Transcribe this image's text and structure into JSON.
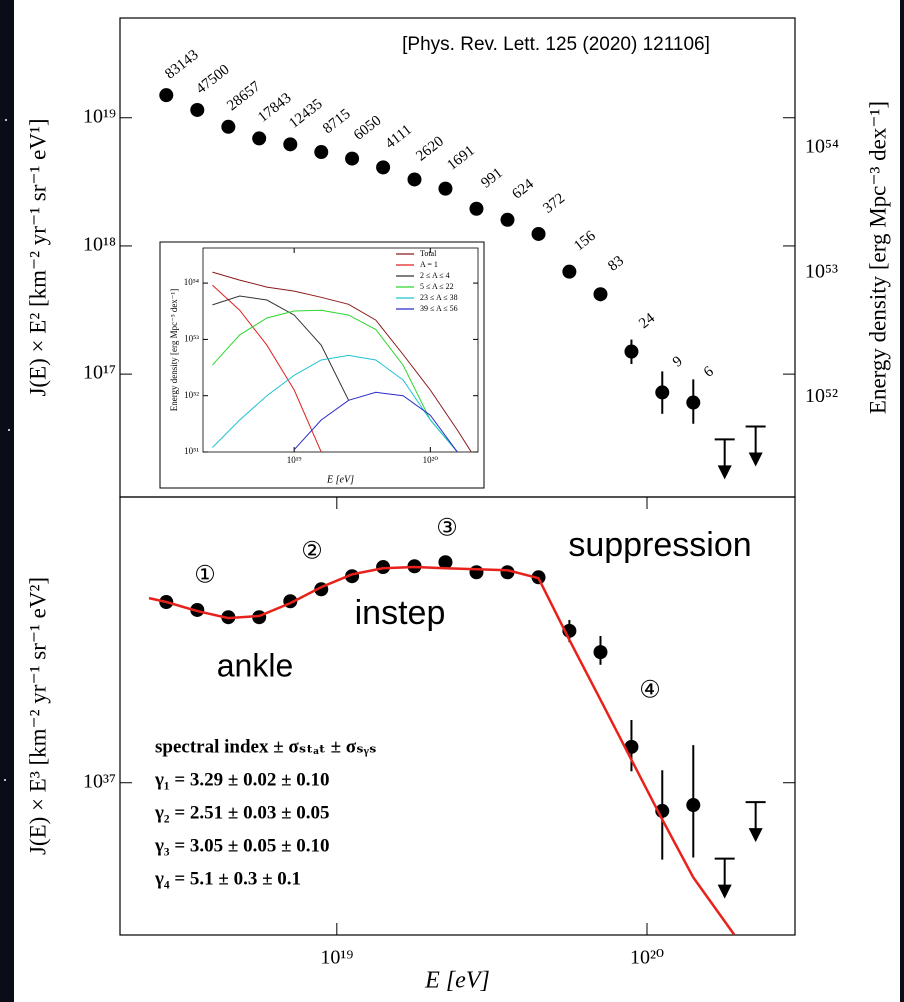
{
  "citation": "[Phys. Rev. Lett. 125 (2020) 121106]",
  "chart_data": [
    {
      "type": "scatter",
      "ylabel": "J(E) × E² [km⁻² yr⁻¹ sr⁻¹ eV¹]",
      "y2label": "Energy density [erg Mpc⁻³ dex⁻¹]",
      "xlog": true,
      "ylog": true,
      "xlim": [
        2e+18,
        3e+20
      ],
      "ylim": [
        1.1e+16,
        6e+19
      ],
      "yticks": [
        {
          "value": 1e+17,
          "label": "10¹⁷"
        },
        {
          "value": 1e+18,
          "label": "10¹⁸"
        },
        {
          "value": 1e+19,
          "label": "10¹⁹"
        }
      ],
      "y2lim": [
        1.6e+51,
        1.1e+55
      ],
      "y2ticks": [
        {
          "value": 1e+52,
          "label": "10⁵²"
        },
        {
          "value": 1e+53,
          "label": "10⁵³"
        },
        {
          "value": 1e+54,
          "label": "10⁵⁴"
        }
      ],
      "x": [
        2.82e+18,
        3.55e+18,
        4.47e+18,
        5.62e+18,
        7.08e+18,
        8.91e+18,
        1.12e+19,
        1.41e+19,
        1.78e+19,
        2.24e+19,
        2.82e+19,
        3.55e+19,
        4.47e+19,
        5.62e+19,
        7.08e+19,
        8.91e+19,
        1.12e+20,
        1.41e+20,
        1.78e+20,
        2.24e+20
      ],
      "series": [
        {
          "color": "#000000",
          "marker": "dot",
          "values": [
            1.5e+19,
            1.15e+19,
            8.5e+18,
            6.9e+18,
            6.2e+18,
            5.4e+18,
            4.8e+18,
            4.1e+18,
            3.3e+18,
            2.8e+18,
            1.95e+18,
            1.6e+18,
            1.24e+18,
            6.3e+17,
            4.2e+17,
            1.5e+17,
            7.2e+16,
            6e+16,
            null,
            null
          ],
          "lower": [
            null,
            null,
            null,
            null,
            null,
            null,
            null,
            null,
            null,
            null,
            null,
            null,
            null,
            null,
            3.7e+17,
            1.2e+17,
            4.9e+16,
            4.1e+16,
            null,
            null
          ],
          "upper": [
            null,
            null,
            null,
            null,
            null,
            null,
            null,
            null,
            null,
            null,
            null,
            null,
            null,
            null,
            4.6e+17,
            1.86e+17,
            1.05e+17,
            9.1e+16,
            null,
            null
          ],
          "event_counts": [
            83143,
            47500,
            28657,
            17843,
            12435,
            8715,
            6050,
            4111,
            2620,
            1691,
            991,
            624,
            372,
            156,
            83,
            24,
            9,
            6,
            null,
            null
          ]
        },
        {
          "color": "#000000",
          "marker": "upper-limit",
          "values": [
            null,
            null,
            null,
            null,
            null,
            null,
            null,
            null,
            null,
            null,
            null,
            null,
            null,
            null,
            null,
            null,
            null,
            null,
            3.1e+16,
            3.9e+16
          ]
        }
      ]
    },
    {
      "type": "scatter",
      "ylabel": "J(E) × E³ [km⁻² yr⁻¹ sr⁻¹ eV²]",
      "xlabel": "E [eV]",
      "xlog": true,
      "ylog": true,
      "xlim": [
        2e+18,
        3e+20
      ],
      "ylim": [
        2.8e+36,
        1.09e+38
      ],
      "xticks": [
        {
          "value": 1e+19,
          "label": "10¹⁹"
        },
        {
          "value": 1e+20,
          "label": "10²⁰"
        }
      ],
      "yticks": [
        {
          "value": 1e+37,
          "label": "10³⁷"
        }
      ],
      "x": [
        2.82e+18,
        3.55e+18,
        4.47e+18,
        5.62e+18,
        7.08e+18,
        8.91e+18,
        1.12e+19,
        1.41e+19,
        1.78e+19,
        2.24e+19,
        2.82e+19,
        3.55e+19,
        4.47e+19,
        5.62e+19,
        7.08e+19,
        8.91e+19,
        1.12e+20,
        1.41e+20,
        1.78e+20,
        2.24e+20
      ],
      "series": [
        {
          "color": "#000000",
          "marker": "dot",
          "values": [
            4.53e+37,
            4.24e+37,
            3.99e+37,
            3.99e+37,
            4.56e+37,
            5.04e+37,
            5.62e+37,
            6.07e+37,
            6.11e+37,
            6.32e+37,
            5.81e+37,
            5.81e+37,
            5.57e+37,
            3.56e+37,
            2.98e+37,
            1.35e+37,
            7.9e+36,
            8.3e+36,
            null,
            null
          ],
          "lower": [
            null,
            null,
            null,
            null,
            null,
            null,
            null,
            null,
            null,
            null,
            null,
            null,
            null,
            3.24e+37,
            2.68e+37,
            1.1e+37,
            5.26e+36,
            5.35e+36,
            null,
            null
          ],
          "upper": [
            null,
            null,
            null,
            null,
            null,
            null,
            null,
            null,
            null,
            null,
            null,
            null,
            null,
            3.9e+37,
            3.41e+37,
            1.69e+37,
            1.11e+37,
            1.37e+37,
            null,
            null
          ]
        },
        {
          "color": "#000000",
          "marker": "upper-limit",
          "values": [
            null,
            null,
            null,
            null,
            null,
            null,
            null,
            null,
            null,
            null,
            null,
            null,
            null,
            null,
            null,
            null,
            null,
            null,
            5.3e+36,
            8.5e+36
          ]
        },
        {
          "color": "#e8211b",
          "marker": "line",
          "x": [
            2.48e+18,
            2.82e+18,
            3.55e+18,
            4.47e+18,
            5.62e+18,
            7.08e+18,
            8.91e+18,
            1.12e+19,
            1.41e+19,
            1.78e+19,
            2.24e+19,
            2.82e+19,
            3.55e+19,
            4.47e+19,
            5.62e+19,
            7.08e+19,
            8.91e+19,
            1.12e+20,
            1.41e+20,
            1.91e+20
          ],
          "values": [
            4.68e+37,
            4.53e+37,
            4.2e+37,
            3.96e+37,
            4.03e+37,
            4.49e+37,
            5.13e+37,
            5.71e+37,
            6.01e+37,
            6.07e+37,
            6.01e+37,
            5.96e+37,
            5.91e+37,
            5.53e+37,
            3.3e+37,
            2e+37,
            1.21e+37,
            7.35e+36,
            4.53e+36,
            2.81e+36
          ]
        }
      ],
      "annotations": [
        "ankle",
        "instep",
        "suppression"
      ],
      "regions": [
        "①",
        "②",
        "③",
        "④"
      ],
      "spectral_index": [
        "spectral index ± σₛₜₐₜ ± σₛᵧₛ",
        "γ₁ = 3.29 ± 0.02 ± 0.10",
        "γ₂ = 2.51 ± 0.03 ± 0.05",
        "γ₃ = 3.05 ± 0.05 ± 0.10",
        "γ₄ = 5.1 ± 0.3 ± 0.1"
      ]
    },
    {
      "type": "line",
      "ylabel": "Energy density [erg Mpc⁻³ dex⁻¹]",
      "xlabel": "E [eV]",
      "xlog": true,
      "ylog": true,
      "xlim": [
        2.14e+18,
        2.24e+20
      ],
      "ylim": [
        1e+51,
        4.2e+54
      ],
      "xticks": [
        {
          "value": 1e+19,
          "label": "10¹⁹"
        },
        {
          "value": 1e+20,
          "label": "10²⁰"
        }
      ],
      "yticks": [
        {
          "value": 1e+51,
          "label": "10⁵¹"
        },
        {
          "value": 1e+52,
          "label": "10⁵²"
        },
        {
          "value": 1e+53,
          "label": "10⁵³"
        },
        {
          "value": 1e+54,
          "label": "10⁵⁴"
        }
      ],
      "legend": "upper right",
      "x": [
        2.51e+18,
        3.98e+18,
        6.31e+18,
        1e+19,
        1.58e+19,
        2.51e+19,
        3.98e+19,
        6.31e+19,
        1e+20,
        1.58e+20,
        2e+20
      ],
      "series": [
        {
          "name": "Total",
          "color": "#8b1a1a",
          "values": [
            1.57e+54,
            1.13e+54,
            8.5e+53,
            7.2e+53,
            5.6e+53,
            4.2e+53,
            2.2e+53,
            5.4e+52,
            1.26e+52,
            2.45e+51,
            1e+51
          ]
        },
        {
          "name": "A = 1",
          "color": "#e02020",
          "values": [
            9.2e+53,
            3.3e+53,
            7.9e+52,
            1.26e+52,
            1e+51,
            null,
            null,
            null,
            null,
            null,
            null
          ]
        },
        {
          "name": "2 ≤ A ≤ 4",
          "color": "#333333",
          "values": [
            4.1e+53,
            5.9e+53,
            5e+53,
            2.7e+53,
            7.9e+52,
            8.3e+51,
            null,
            null,
            null,
            null,
            null
          ]
        },
        {
          "name": "5 ≤ A ≤ 22",
          "color": "#2ed62e",
          "values": [
            3.5e+52,
            1.2e+53,
            2.4e+53,
            3.2e+53,
            3.3e+53,
            2.7e+53,
            1.5e+53,
            3.5e+52,
            3.7e+51,
            1e+51,
            null
          ]
        },
        {
          "name": "23 ≤ A ≤ 38",
          "color": "#1fc3d3",
          "values": [
            1.2e+51,
            3.7e+51,
            1e+52,
            2.3e+52,
            4.3e+52,
            5.2e+52,
            4.3e+52,
            1.9e+52,
            3.7e+51,
            1e+51,
            null
          ]
        },
        {
          "name": "39 ≤ A ≤ 56",
          "color": "#2a2ac8",
          "values": [
            null,
            null,
            null,
            1.1e+51,
            3.7e+51,
            8.3e+51,
            1.15e+52,
            1e+52,
            4.5e+51,
            1e+51,
            null
          ]
        }
      ]
    }
  ]
}
